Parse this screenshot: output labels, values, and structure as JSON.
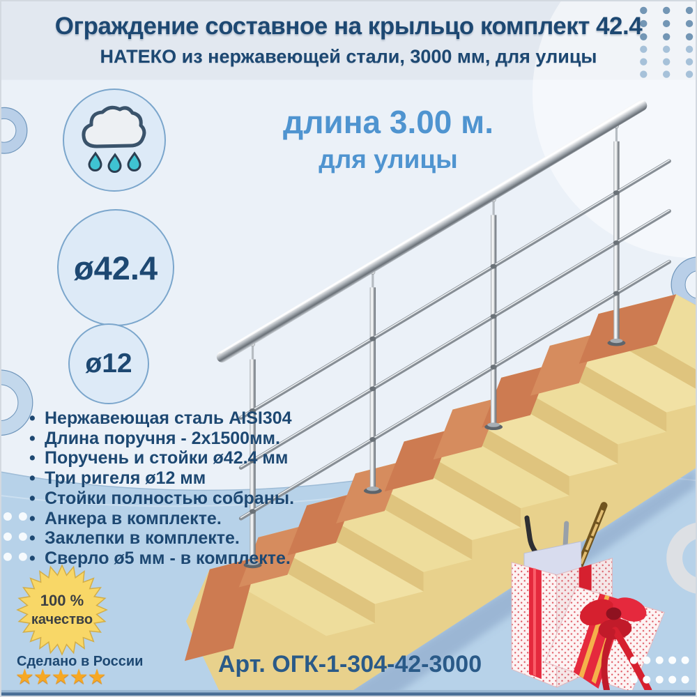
{
  "header": {
    "title": "Ограждение составное на крыльцо комплект 42.4",
    "subtitle": "НАТЕКО из нержавеющей стали, 3000 мм, для улицы"
  },
  "hero": {
    "length_line": "длина 3.00 м.",
    "usage_line": "для улицы"
  },
  "spec_circles": {
    "weather_icon": "rain-cloud-icon",
    "handrail_diameter": "ø42.4",
    "crossbar_diameter": "ø12"
  },
  "features": [
    "Нержавеющая сталь AISI304",
    "Длина поручня - 2x1500мм.",
    "Поручень и стойки ø42.4 мм",
    "Три ригеля ø12 мм",
    "Стойки полностью собраны.",
    "Анкера в комплекте.",
    "Заклепки в комплекте.",
    "Сверло ø5 мм - в комплекте."
  ],
  "quality_badge": {
    "line1": "100 %",
    "line2": "качество"
  },
  "origin": {
    "label": "Сделано в России",
    "stars": "★★★★★"
  },
  "sku_line": "Арт. ОГК-1-304-42-3000",
  "colors": {
    "navy": "#1d4872",
    "accent_blue": "#4f94d0",
    "band_blue": "#b7d2e9",
    "badge_yellow": "#f8d767",
    "star_orange": "#f6a824",
    "tread_sand": "#eedd9c",
    "riser_orange": "#cd7b51"
  }
}
